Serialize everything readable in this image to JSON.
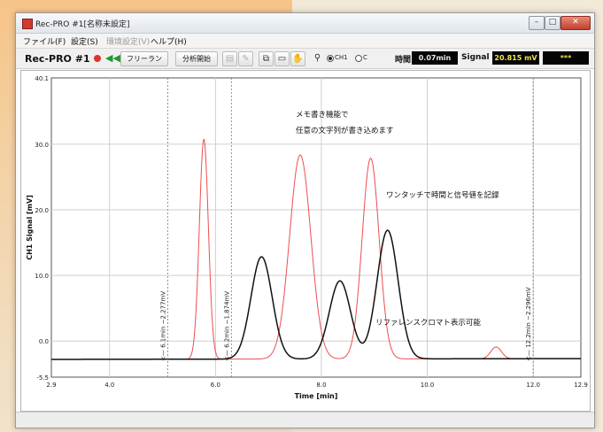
{
  "window": {
    "title": "Rec-PRO #1[名称未設定]"
  },
  "menu": [
    {
      "label": "ファイル(F)",
      "disabled": false
    },
    {
      "label": "設定(S)",
      "disabled": false
    },
    {
      "label": "環境設定(V)",
      "disabled": true
    },
    {
      "label": "ヘルプ(H)",
      "disabled": false
    }
  ],
  "toolbar": {
    "brand": "Rec-PRO #1",
    "freerun_label": "フリーラン",
    "analyze_label": "分析開始",
    "channel": {
      "ch1_label": "CH1",
      "ch2_label": "C",
      "selected": "CH1"
    },
    "time_label": "時間",
    "time_value": "0.07min",
    "signal_label": "Signal",
    "signal_value": "20.815 mV",
    "extra_value": "***"
  },
  "chart_data": {
    "type": "line",
    "xlabel": "Time [min]",
    "ylabel": "CH1 Signal [mV]",
    "xlim": [
      2.9,
      12.9
    ],
    "ylim": [
      -5.5,
      40.1
    ],
    "x_ticks": [
      "2.9",
      "4.0",
      "6.0",
      "8.0",
      "10.0",
      "12.0",
      "12.9"
    ],
    "y_ticks": [
      "40.1",
      "30.0",
      "20.0",
      "10.0",
      "0.0",
      "-5.5"
    ],
    "grid": true,
    "series": [
      {
        "color": "#ee4d4d",
        "baseline": -2.8,
        "peaks": [
          {
            "center": 5.78,
            "height": 33.6,
            "width": 0.085
          },
          {
            "center": 7.6,
            "height": 31.1,
            "width": 0.2
          },
          {
            "center": 8.93,
            "height": 30.6,
            "width": 0.16
          },
          {
            "center": 11.3,
            "height": 1.8,
            "width": 0.1
          }
        ]
      },
      {
        "color": "#111111",
        "baseline": -2.8,
        "peaks": [
          {
            "center": 6.87,
            "height": 15.6,
            "width": 0.2
          },
          {
            "center": 8.35,
            "height": 11.9,
            "width": 0.2
          },
          {
            "center": 9.25,
            "height": 19.6,
            "width": 0.2
          }
        ]
      }
    ],
    "annotations": [
      "メモ書き機能で",
      "任意の文字列が書き込めます",
      "ワンタッチで時間と信号値を記録",
      "リファレンスクロマト表示可能"
    ],
    "markers": [
      {
        "x": 5.1,
        "label": "<— 6.1min −2.277mV"
      },
      {
        "x": 6.3,
        "label": "<— 6.2min −1.874mV"
      },
      {
        "x": 12.0,
        "label": "<— 12.2min −2.296mV"
      }
    ]
  }
}
